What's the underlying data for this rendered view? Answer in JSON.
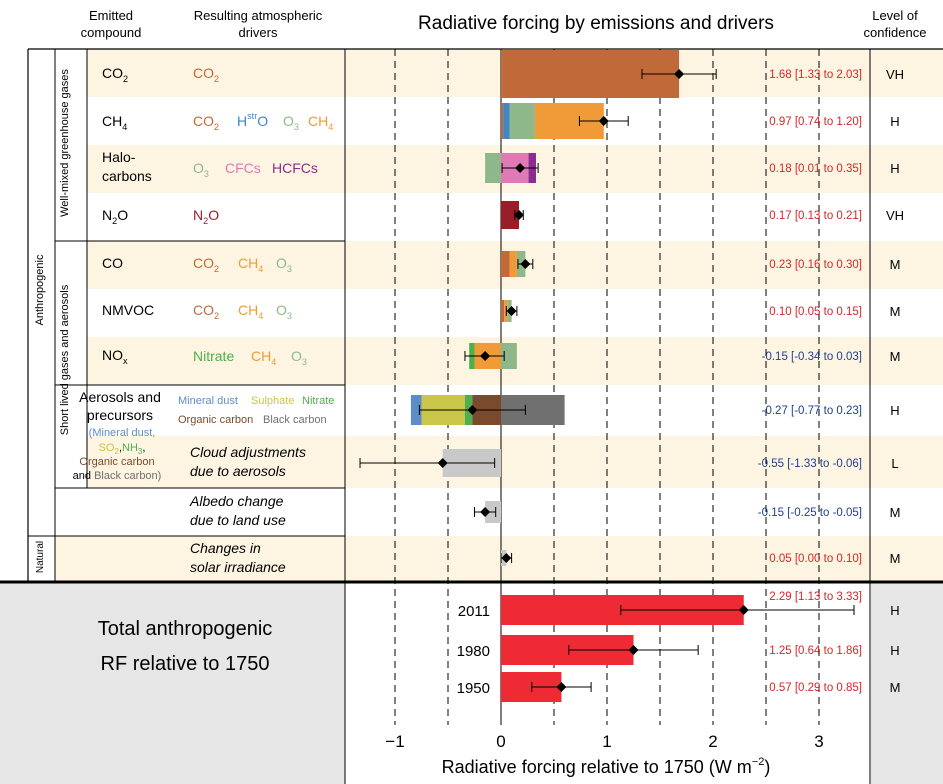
{
  "headers": {
    "emitted": [
      "Emitted",
      "compound"
    ],
    "drivers": [
      "Resulting atmospheric",
      "drivers"
    ],
    "title": "Radiative forcing by emissions and drivers",
    "confidence": [
      "Level of",
      "confidence"
    ]
  },
  "groups": {
    "anthropogenic": "Anthropogenic",
    "natural": "Natural",
    "wmghg": "Well-mixed greenhouse gases",
    "slcf": "Short lived gases and aerosols"
  },
  "colors": {
    "co2": "#c06a3a",
    "h2o_str": "#3f86c6",
    "o3": "#8fb88a",
    "ch4": "#f19a38",
    "cfcs": "#e07ab7",
    "hcfcs": "#8e2b8f",
    "n2o": "#9a1d2a",
    "nitrate": "#4db04a",
    "mineral_dust": "#5b8ec8",
    "sulphate": "#c9c64a",
    "organic_carbon": "#7b4a2c",
    "black_carbon": "#707070",
    "cloud": "#c8c8c8",
    "albedo": "#c8c8c8",
    "solar": "#c8c8c8",
    "total": "#ee2a35",
    "band": "#fdf5e1",
    "total_bg": "#e6e6e6",
    "value_pos": "#d62728",
    "value_neg": "#1f3f8f"
  },
  "compounds": {
    "co2": {
      "base": "CO",
      "sub": "2"
    },
    "ch4": {
      "base": "CH",
      "sub": "4"
    },
    "halo": [
      "Halo-",
      "carbons"
    ],
    "n2o": {
      "base": "N",
      "sub": "2",
      "tail": "O"
    },
    "co": "CO",
    "nmvoc": "NMVOC",
    "nox": {
      "base": "NO",
      "sub": "x"
    },
    "aerosols": [
      "Aerosols and",
      "precursors"
    ],
    "aerosols_detail": {
      "open": "(Mineral dust,",
      "so2": {
        "base": "SO",
        "sub": "2"
      },
      "sep": ",",
      "nh3": {
        "base": "NH",
        "sub": "3"
      },
      "tail": ",",
      "oc": "Organic carbon",
      "and": "and",
      "bc": "Black carbon)"
    }
  },
  "drivers": {
    "co2_row": {
      "co2": {
        "base": "CO",
        "sub": "2"
      }
    },
    "ch4_row": {
      "co2": {
        "base": "CO",
        "sub": "2"
      },
      "h2o": {
        "base": "H",
        "sup": "str",
        "tail2": "O"
      },
      "o3": {
        "base": "O",
        "sub": "3"
      },
      "ch4": {
        "base": "CH",
        "sub": "4"
      }
    },
    "halo_row": {
      "o3": {
        "base": "O",
        "sub": "3"
      },
      "cfcs": "CFCs",
      "hcfcs": "HCFCs"
    },
    "n2o_row": {
      "n2o": {
        "base": "N",
        "sub": "2",
        "tail": "O"
      }
    },
    "co_row": {
      "co2": {
        "base": "CO",
        "sub": "2"
      },
      "ch4": {
        "base": "CH",
        "sub": "4"
      },
      "o3": {
        "base": "O",
        "sub": "3"
      }
    },
    "nmvoc_row": {
      "co2": {
        "base": "CO",
        "sub": "2"
      },
      "ch4": {
        "base": "CH",
        "sub": "4"
      },
      "o3": {
        "base": "O",
        "sub": "3"
      }
    },
    "nox_row": {
      "nitrate": "Nitrate",
      "ch4": {
        "base": "CH",
        "sub": "4"
      },
      "o3": {
        "base": "O",
        "sub": "3"
      }
    },
    "aerosol_row": {
      "mineral_dust": "Mineral dust",
      "sulphate": "Sulphate",
      "nitrate": "Nitrate",
      "organic_carbon": "Organic carbon",
      "black_carbon": "Black carbon"
    },
    "cloud_row": [
      "Cloud adjustments",
      "due to aerosols"
    ],
    "albedo_row": [
      "Albedo change",
      "due to land use"
    ],
    "solar_row": [
      "Changes in",
      "solar irradiance"
    ]
  },
  "total_panel": {
    "label": [
      "Total anthropogenic",
      "RF relative to 1750"
    ]
  },
  "chart_data": {
    "type": "bar",
    "title": "Radiative forcing by emissions and drivers",
    "xlabel": "Radiative forcing relative to 1750 (W m−2)",
    "xlabel_main": "Radiative forcing relative to 1750 (W m",
    "xlabel_sup": "−2",
    "xlabel_tail": ")",
    "xlim": [
      -1.0,
      3.4
    ],
    "xticks": [
      {
        "v": -1,
        "label": "−1"
      },
      {
        "v": 0,
        "label": "0"
      },
      {
        "v": 1,
        "label": "1"
      },
      {
        "v": 2,
        "label": "2"
      },
      {
        "v": 3,
        "label": "3"
      }
    ],
    "gridlines": [
      -1,
      -0.5,
      0,
      0.5,
      1,
      1.5,
      2,
      2.5,
      3
    ],
    "rows": [
      {
        "id": "co2",
        "segments": [
          {
            "driver": "co2",
            "from": 0,
            "to": 1.68
          }
        ],
        "best": 1.68,
        "range": [
          1.33,
          2.03
        ],
        "value_label": "1.68 [1.33 to 2.03]",
        "confidence": "VH"
      },
      {
        "id": "ch4",
        "segments": [
          {
            "driver": "co2",
            "from": 0,
            "to": 0.02
          },
          {
            "driver": "h2o_str",
            "from": 0.02,
            "to": 0.08
          },
          {
            "driver": "o3",
            "from": 0.08,
            "to": 0.32
          },
          {
            "driver": "ch4",
            "from": 0.32,
            "to": 0.97
          }
        ],
        "best": 0.97,
        "range": [
          0.74,
          1.2
        ],
        "value_label": "0.97 [0.74 to 1.20]",
        "confidence": "H"
      },
      {
        "id": "halo",
        "segments": [
          {
            "driver": "o3",
            "from": -0.15,
            "to": 0
          },
          {
            "driver": "cfcs",
            "from": 0,
            "to": 0.26
          },
          {
            "driver": "hcfcs",
            "from": 0.26,
            "to": 0.33
          }
        ],
        "best": 0.18,
        "range": [
          0.01,
          0.35
        ],
        "value_label": "0.18 [0.01 to 0.35]",
        "confidence": "H"
      },
      {
        "id": "n2o",
        "segments": [
          {
            "driver": "n2o",
            "from": 0,
            "to": 0.17
          }
        ],
        "best": 0.17,
        "range": [
          0.13,
          0.21
        ],
        "value_label": "0.17 [0.13 to 0.21]",
        "confidence": "VH"
      },
      {
        "id": "co",
        "segments": [
          {
            "driver": "co2",
            "from": 0,
            "to": 0.08
          },
          {
            "driver": "ch4",
            "from": 0.08,
            "to": 0.15
          },
          {
            "driver": "o3",
            "from": 0.15,
            "to": 0.23
          }
        ],
        "best": 0.23,
        "range": [
          0.16,
          0.3
        ],
        "value_label": "0.23 [0.16 to 0.30]",
        "confidence": "M"
      },
      {
        "id": "nmvoc",
        "segments": [
          {
            "driver": "co2",
            "from": 0,
            "to": 0.03
          },
          {
            "driver": "ch4",
            "from": 0.03,
            "to": 0.06
          },
          {
            "driver": "o3",
            "from": 0.06,
            "to": 0.1
          }
        ],
        "best": 0.1,
        "range": [
          0.05,
          0.15
        ],
        "value_label": "0.10 [0.05 to 0.15]",
        "confidence": "M"
      },
      {
        "id": "nox",
        "segments": [
          {
            "driver": "nitrate",
            "from": -0.3,
            "to": -0.25
          },
          {
            "driver": "ch4",
            "from": -0.25,
            "to": 0
          },
          {
            "driver": "o3",
            "from": 0,
            "to": 0.15
          }
        ],
        "best": -0.15,
        "range": [
          -0.34,
          0.03
        ],
        "value_label": "-0.15 [-0.34 to 0.03]",
        "confidence": "M"
      },
      {
        "id": "aerosols",
        "segments": [
          {
            "driver": "mineral_dust",
            "from": -0.85,
            "to": -0.75
          },
          {
            "driver": "sulphate",
            "from": -0.75,
            "to": -0.34
          },
          {
            "driver": "nitrate",
            "from": -0.34,
            "to": -0.27
          },
          {
            "driver": "organic_carbon",
            "from": -0.27,
            "to": 0
          },
          {
            "driver": "black_carbon",
            "from": 0,
            "to": 0.6
          }
        ],
        "best": -0.27,
        "range": [
          -0.77,
          0.23
        ],
        "value_label": "-0.27 [-0.77 to 0.23]",
        "confidence": "H"
      },
      {
        "id": "cloud",
        "segments": [
          {
            "driver": "cloud",
            "from": -0.55,
            "to": 0
          }
        ],
        "best": -0.55,
        "range": [
          -1.33,
          -0.06
        ],
        "value_label": "-0.55 [-1.33 to -0.06]",
        "confidence": "L"
      },
      {
        "id": "albedo",
        "segments": [
          {
            "driver": "albedo",
            "from": -0.15,
            "to": 0
          }
        ],
        "best": -0.15,
        "range": [
          -0.25,
          -0.05
        ],
        "value_label": "-0.15 [-0.25 to -0.05]",
        "confidence": "M"
      },
      {
        "id": "solar",
        "segments": [
          {
            "driver": "solar",
            "from": 0,
            "to": 0.05
          }
        ],
        "best": 0.05,
        "range": [
          0.0,
          0.1
        ],
        "value_label": "0.05 [0.00 to 0.10]",
        "confidence": "M"
      }
    ],
    "totals": [
      {
        "year": "2011",
        "value": 2.29,
        "range": [
          1.13,
          3.33
        ],
        "value_label": "2.29 [1.13 to 3.33]",
        "confidence": "H"
      },
      {
        "year": "1980",
        "value": 1.25,
        "range": [
          0.64,
          1.86
        ],
        "value_label": "1.25 [0.64 to 1.86]",
        "confidence": "H"
      },
      {
        "year": "1950",
        "value": 0.57,
        "range": [
          0.29,
          0.85
        ],
        "value_label": "0.57 [0.29 to 0.85]",
        "confidence": "M"
      }
    ]
  }
}
